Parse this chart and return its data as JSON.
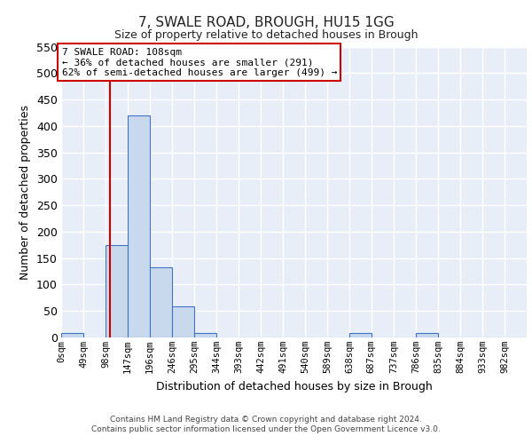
{
  "title": "7, SWALE ROAD, BROUGH, HU15 1GG",
  "subtitle": "Size of property relative to detached houses in Brough",
  "xlabel": "Distribution of detached houses by size in Brough",
  "ylabel": "Number of detached properties",
  "bin_edges": [
    0,
    49,
    98,
    147,
    196,
    246,
    295,
    344,
    393,
    442,
    491,
    540,
    589,
    638,
    687,
    737,
    786,
    835,
    884,
    933,
    982,
    1031
  ],
  "bin_labels": [
    "0sqm",
    "49sqm",
    "98sqm",
    "147sqm",
    "196sqm",
    "246sqm",
    "295sqm",
    "344sqm",
    "393sqm",
    "442sqm",
    "491sqm",
    "540sqm",
    "589sqm",
    "638sqm",
    "687sqm",
    "737sqm",
    "786sqm",
    "835sqm",
    "884sqm",
    "933sqm",
    "982sqm"
  ],
  "counts": [
    8,
    0,
    175,
    420,
    133,
    58,
    8,
    0,
    0,
    0,
    0,
    0,
    0,
    8,
    0,
    0,
    8,
    0,
    0,
    0,
    0
  ],
  "bar_color": "#c9d9ed",
  "bar_edge_color": "#4472c4",
  "property_size": 108,
  "vline_color": "#cc0000",
  "annotation_text": "7 SWALE ROAD: 108sqm\n← 36% of detached houses are smaller (291)\n62% of semi-detached houses are larger (499) →",
  "annotation_box_color": "#cc0000",
  "ylim": [
    0,
    550
  ],
  "yticks": [
    0,
    50,
    100,
    150,
    200,
    250,
    300,
    350,
    400,
    450,
    500,
    550
  ],
  "bg_color": "#e8eef8",
  "grid_color": "#ffffff",
  "footer_line1": "Contains HM Land Registry data © Crown copyright and database right 2024.",
  "footer_line2": "Contains public sector information licensed under the Open Government Licence v3.0."
}
